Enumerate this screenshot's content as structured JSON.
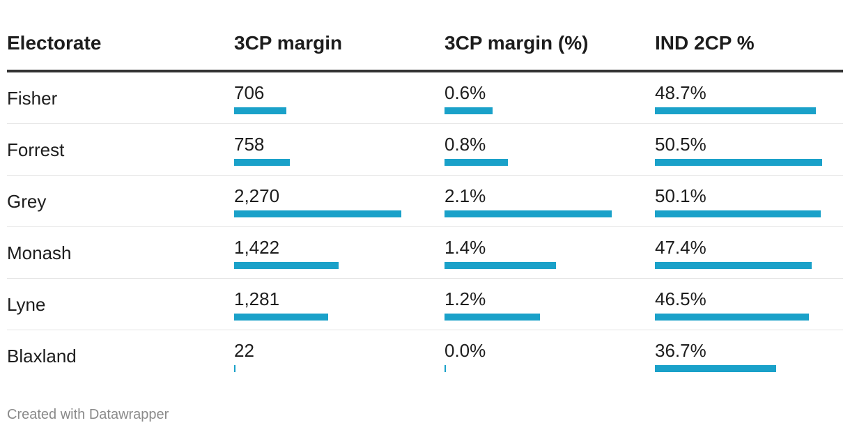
{
  "chart_data": {
    "type": "table",
    "columns": [
      "Electorate",
      "3CP margin",
      "3CP margin (%)",
      "IND 2CP %"
    ],
    "rows": [
      {
        "electorate": "Fisher",
        "margin": 706,
        "margin_label": "706",
        "margin_pct": 0.6,
        "margin_pct_label": "0.6%",
        "ind_2cp": 48.7,
        "ind_2cp_label": "48.7%"
      },
      {
        "electorate": "Forrest",
        "margin": 758,
        "margin_label": "758",
        "margin_pct": 0.8,
        "margin_pct_label": "0.8%",
        "ind_2cp": 50.5,
        "ind_2cp_label": "50.5%"
      },
      {
        "electorate": "Grey",
        "margin": 2270,
        "margin_label": "2,270",
        "margin_pct": 2.1,
        "margin_pct_label": "2.1%",
        "ind_2cp": 50.1,
        "ind_2cp_label": "50.1%"
      },
      {
        "electorate": "Monash",
        "margin": 1422,
        "margin_label": "1,422",
        "margin_pct": 1.4,
        "margin_pct_label": "1.4%",
        "ind_2cp": 47.4,
        "ind_2cp_label": "47.4%"
      },
      {
        "electorate": "Lyne",
        "margin": 1281,
        "margin_label": "1,281",
        "margin_pct": 1.2,
        "margin_pct_label": "1.2%",
        "ind_2cp": 46.5,
        "ind_2cp_label": "46.5%"
      },
      {
        "electorate": "Blaxland",
        "margin": 22,
        "margin_label": "22",
        "margin_pct": 0.0,
        "margin_pct_label": "0.0%",
        "ind_2cp": 36.7,
        "ind_2cp_label": "36.7%"
      }
    ],
    "bar_color": "#1aa1c9"
  },
  "footer": "Created with Datawrapper"
}
